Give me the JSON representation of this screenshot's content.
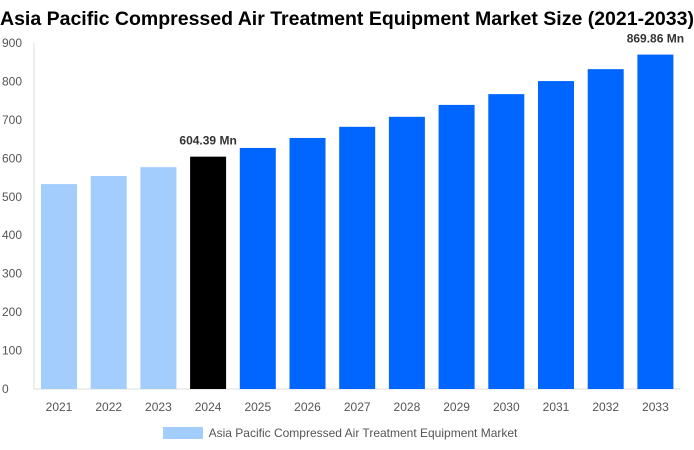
{
  "chart_data": {
    "type": "bar",
    "title": "Asia Pacific Compressed Air Treatment Equipment Market Size (2021-2033)",
    "categories": [
      "2021",
      "2022",
      "2023",
      "2024",
      "2025",
      "2026",
      "2027",
      "2028",
      "2029",
      "2030",
      "2031",
      "2032",
      "2033"
    ],
    "series": [
      {
        "name": "Asia Pacific Compressed Air Treatment Equipment Market",
        "values": [
          533,
          554,
          577,
          604.39,
          627,
          653,
          682,
          708,
          739,
          767,
          801,
          832,
          869.86
        ]
      }
    ],
    "data_labels": {
      "2024": "604.39 Mn",
      "2033": "869.86 Mn"
    },
    "ylim": [
      0,
      900
    ],
    "yticks": [
      0,
      100,
      200,
      300,
      400,
      500,
      600,
      700,
      800,
      900
    ],
    "grid": false,
    "legend_position": "bottom",
    "colors": {
      "historical": "#a3cdfd",
      "base_year": "#000000",
      "forecast": "#0066ff"
    }
  }
}
